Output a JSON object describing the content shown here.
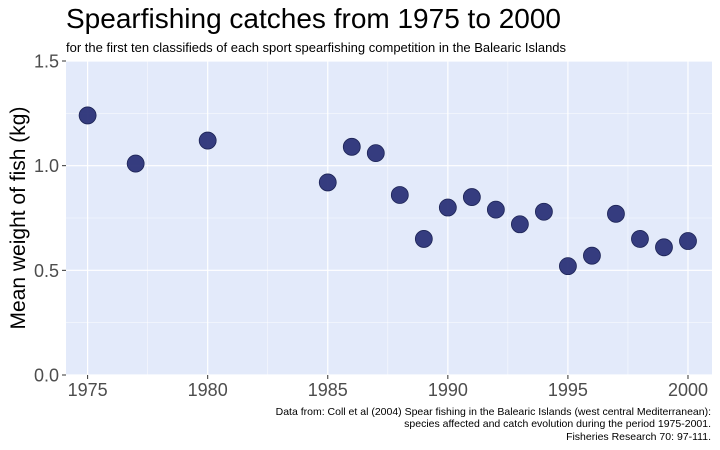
{
  "chart_data": {
    "type": "scatter",
    "title": "Spearfishing catches from 1975 to 2000",
    "subtitle": "for the first ten classifieds of each sport spearfishing competition in the Balearic Islands",
    "xlabel": "",
    "ylabel": "Mean weight of fish (kg)",
    "xlim": [
      1974.1,
      2001
    ],
    "ylim": [
      0,
      1.5
    ],
    "x_ticks": [
      1975,
      1980,
      1985,
      1990,
      1995,
      2000
    ],
    "y_ticks": [
      0.0,
      0.5,
      1.0,
      1.5
    ],
    "y_tick_labels": [
      "0.0",
      "0.5",
      "1.0",
      "1.5"
    ],
    "grid": true,
    "point_color": "#2b3378",
    "panel_background": "#e3eafa",
    "points": [
      {
        "x": 1975,
        "y": 1.24
      },
      {
        "x": 1977,
        "y": 1.01
      },
      {
        "x": 1980,
        "y": 1.12
      },
      {
        "x": 1985,
        "y": 0.92
      },
      {
        "x": 1986,
        "y": 1.09
      },
      {
        "x": 1987,
        "y": 1.06
      },
      {
        "x": 1988,
        "y": 0.86
      },
      {
        "x": 1989,
        "y": 0.65
      },
      {
        "x": 1990,
        "y": 0.8
      },
      {
        "x": 1991,
        "y": 0.85
      },
      {
        "x": 1992,
        "y": 0.79
      },
      {
        "x": 1993,
        "y": 0.72
      },
      {
        "x": 1994,
        "y": 0.78
      },
      {
        "x": 1995,
        "y": 0.52
      },
      {
        "x": 1996,
        "y": 0.57
      },
      {
        "x": 1997,
        "y": 0.77
      },
      {
        "x": 1998,
        "y": 0.65
      },
      {
        "x": 1999,
        "y": 0.61
      },
      {
        "x": 2000,
        "y": 0.64
      }
    ],
    "caption": [
      "Data from: Coll et al (2004) Spear fishing in the Balearic Islands (west central Mediterranean):",
      "species affected and catch evolution during the period 1975-2001.",
      "Fisheries Research 70: 97-111."
    ]
  }
}
